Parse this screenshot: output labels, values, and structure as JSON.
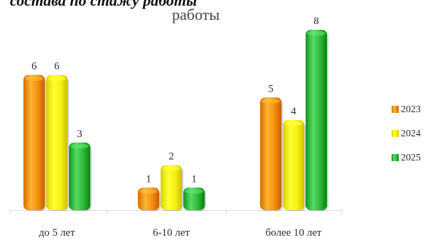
{
  "page": {
    "heading_fragment": "состава по стажу работы"
  },
  "chart_data": {
    "type": "bar",
    "title": "работы",
    "categories": [
      "до 5 лет",
      "6-10 лет",
      "более 10 лет"
    ],
    "series": [
      {
        "name": "2023",
        "values": [
          6,
          1,
          5
        ],
        "color": "#F28C0A"
      },
      {
        "name": "2024",
        "values": [
          6,
          2,
          4
        ],
        "color": "#F6EE0E"
      },
      {
        "name": "2025",
        "values": [
          3,
          1,
          8
        ],
        "color": "#2EB43A"
      }
    ],
    "ylim": [
      0,
      8
    ],
    "grid": false,
    "legend": "right",
    "xlabel": "",
    "ylabel": ""
  }
}
